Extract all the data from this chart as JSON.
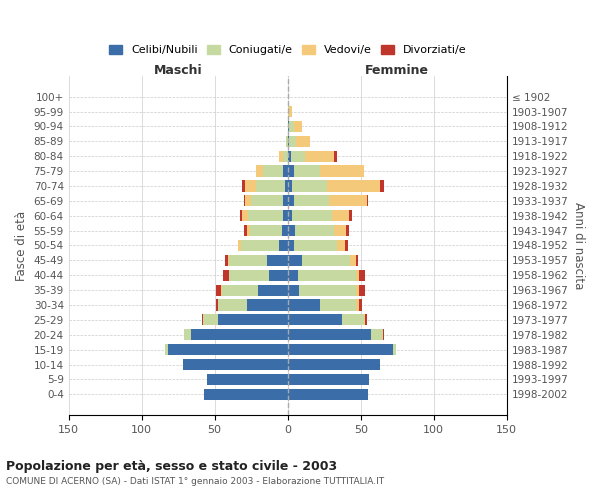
{
  "age_groups": [
    "0-4",
    "5-9",
    "10-14",
    "15-19",
    "20-24",
    "25-29",
    "30-34",
    "35-39",
    "40-44",
    "45-49",
    "50-54",
    "55-59",
    "60-64",
    "65-69",
    "70-74",
    "75-79",
    "80-84",
    "85-89",
    "90-94",
    "95-99",
    "100+"
  ],
  "birth_years": [
    "1998-2002",
    "1993-1997",
    "1988-1992",
    "1983-1987",
    "1978-1982",
    "1973-1977",
    "1968-1972",
    "1963-1967",
    "1958-1962",
    "1953-1957",
    "1948-1952",
    "1943-1947",
    "1938-1942",
    "1933-1937",
    "1928-1932",
    "1923-1927",
    "1918-1922",
    "1913-1917",
    "1908-1912",
    "1903-1907",
    "≤ 1902"
  ],
  "maschi": {
    "celibi": [
      57,
      55,
      72,
      82,
      66,
      48,
      28,
      20,
      13,
      14,
      6,
      4,
      3,
      3,
      2,
      3,
      0,
      0,
      0,
      0,
      0
    ],
    "coniugati": [
      0,
      0,
      0,
      2,
      5,
      10,
      20,
      25,
      27,
      26,
      26,
      22,
      24,
      22,
      20,
      14,
      3,
      1,
      0,
      0,
      0
    ],
    "vedovi": [
      0,
      0,
      0,
      0,
      0,
      0,
      0,
      1,
      0,
      1,
      2,
      2,
      4,
      4,
      7,
      5,
      3,
      0,
      0,
      0,
      0
    ],
    "divorziati": [
      0,
      0,
      0,
      0,
      0,
      1,
      1,
      3,
      4,
      2,
      0,
      2,
      2,
      1,
      2,
      0,
      0,
      0,
      0,
      0,
      0
    ]
  },
  "femmine": {
    "nubili": [
      55,
      56,
      63,
      72,
      57,
      37,
      22,
      8,
      7,
      10,
      4,
      5,
      3,
      4,
      3,
      4,
      2,
      1,
      1,
      0,
      0
    ],
    "coniugate": [
      0,
      0,
      0,
      2,
      8,
      15,
      25,
      39,
      40,
      33,
      30,
      27,
      27,
      24,
      24,
      18,
      10,
      5,
      3,
      1,
      0
    ],
    "vedove": [
      0,
      0,
      0,
      0,
      0,
      1,
      2,
      2,
      2,
      4,
      5,
      8,
      12,
      26,
      36,
      30,
      20,
      9,
      6,
      2,
      0
    ],
    "divorziate": [
      0,
      0,
      0,
      0,
      1,
      1,
      2,
      4,
      4,
      1,
      2,
      2,
      2,
      1,
      3,
      0,
      2,
      0,
      0,
      0,
      0
    ]
  },
  "colors": {
    "celibi": "#3B6EA8",
    "coniugati": "#C5D9A0",
    "vedovi": "#F5C97A",
    "divorziati": "#C0362C"
  },
  "title": "Popolazione per età, sesso e stato civile - 2003",
  "subtitle": "COMUNE DI ACERNO (SA) - Dati ISTAT 1° gennaio 2003 - Elaborazione TUTTITALIA.IT",
  "ylabel_left": "Fasce di età",
  "ylabel_right": "Anni di nascita",
  "xlabel_left": "Maschi",
  "xlabel_right": "Femmine",
  "xlim": 150,
  "legend_labels": [
    "Celibi/Nubili",
    "Coniugati/e",
    "Vedovi/e",
    "Divorziati/e"
  ],
  "bg_color": "#ffffff",
  "grid_color": "#cccccc"
}
